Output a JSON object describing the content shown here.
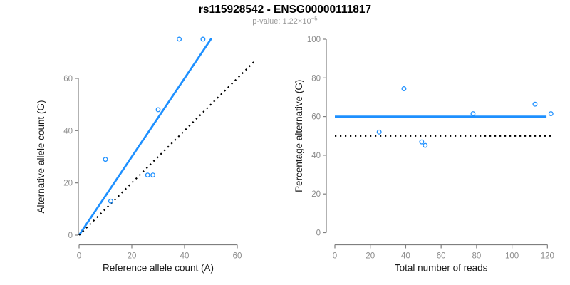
{
  "title": "rs115928542 - ENSG00000111817",
  "subtitle": {
    "text": "p-value: 1.22×10",
    "exponent": "−5"
  },
  "colors": {
    "accent_blue": "#1E90FF",
    "line_black": "#000000",
    "axis_gray": "#7f7f7f",
    "tick_label_gray": "#8c8c8c",
    "axis_label_dark": "#1a1a1a",
    "subtitle_gray": "#9b9b9b",
    "background": "#ffffff"
  },
  "chart_data": [
    {
      "type": "scatter",
      "name": "allele-counts-scatter",
      "title": "",
      "xlabel": "Reference allele count (A)",
      "ylabel": "Alternative allele count (G)",
      "xticks": [
        0,
        20,
        40,
        60
      ],
      "yticks": [
        0,
        20,
        40,
        60
      ],
      "xlim": [
        0,
        64
      ],
      "ylim": [
        0,
        78
      ],
      "grid": false,
      "legend_position": "none",
      "marker": "open-circle",
      "points": [
        [
          10,
          29
        ],
        [
          12,
          13
        ],
        [
          26,
          23
        ],
        [
          28,
          23
        ],
        [
          30,
          48
        ],
        [
          38,
          75
        ],
        [
          47,
          75
        ]
      ],
      "lines": [
        {
          "name": "fit-line",
          "from": [
            0,
            0
          ],
          "to": [
            50.2,
            75.3
          ],
          "color": "#1E90FF",
          "style": "solid"
        },
        {
          "name": "identity-line",
          "from": [
            0,
            0
          ],
          "to": [
            66.8,
            66.8
          ],
          "color": "#000000",
          "style": "dotted"
        }
      ]
    },
    {
      "type": "scatter",
      "name": "percentage-vs-reads-scatter",
      "title": "",
      "xlabel": "Total number of reads",
      "ylabel": "Percentage alternative (G)",
      "xticks": [
        0,
        20,
        40,
        60,
        80,
        100,
        120
      ],
      "yticks": [
        0,
        20,
        40,
        60,
        80,
        100
      ],
      "xlim": [
        0,
        123
      ],
      "ylim": [
        0,
        100
      ],
      "grid": false,
      "legend_position": "none",
      "marker": "open-circle",
      "points": [
        [
          39,
          74.4
        ],
        [
          25,
          52
        ],
        [
          49,
          46.9
        ],
        [
          51,
          45.1
        ],
        [
          78,
          61.5
        ],
        [
          113,
          66.4
        ],
        [
          122,
          61.5
        ]
      ],
      "lines": [
        {
          "name": "mean-percentage-line",
          "from": [
            0,
            60
          ],
          "to": [
            119.5,
            60
          ],
          "color": "#1E90FF",
          "style": "solid"
        },
        {
          "name": "fifty-percent-line",
          "from": [
            0,
            50
          ],
          "to": [
            122.5,
            50
          ],
          "color": "#000000",
          "style": "dotted"
        }
      ]
    }
  ]
}
